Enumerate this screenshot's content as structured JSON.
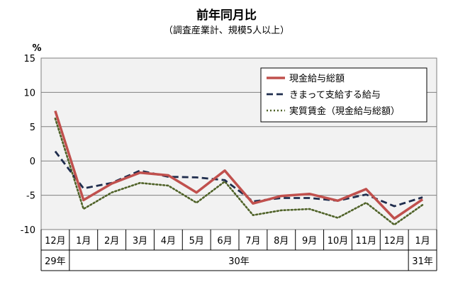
{
  "chart_data": {
    "type": "line",
    "title": "前年同月比",
    "subtitle": "（調査産業計、規模5人以上）",
    "ylabel": "%",
    "ylim": [
      -10,
      15
    ],
    "yticks": [
      15,
      10,
      5,
      0,
      -5,
      -10
    ],
    "grid": true,
    "legend_position": "top-right",
    "categories": [
      "12月",
      "1月",
      "2月",
      "3月",
      "4月",
      "5月",
      "6月",
      "7月",
      "8月",
      "9月",
      "10月",
      "11月",
      "12月",
      "1月"
    ],
    "year_labels": [
      {
        "label": "29年",
        "from": 0,
        "to": 0
      },
      {
        "label": "30年",
        "from": 1,
        "to": 12
      },
      {
        "label": "31年",
        "from": 13,
        "to": 13
      }
    ],
    "series": [
      {
        "name": "現金給与総額",
        "color": "#c0504d",
        "style": "solid",
        "values": [
          7.3,
          -5.7,
          -3.3,
          -1.7,
          -2.1,
          -4.6,
          -1.4,
          -6.2,
          -5.1,
          -4.8,
          -5.8,
          -4.1,
          -8.4,
          -5.6
        ]
      },
      {
        "name": "きまって支給する給与",
        "color": "#1f2d4d",
        "style": "dashed",
        "values": [
          1.4,
          -4.0,
          -3.2,
          -1.4,
          -2.3,
          -2.4,
          -2.8,
          -5.9,
          -5.4,
          -5.4,
          -5.8,
          -4.9,
          -6.6,
          -5.3
        ]
      },
      {
        "name": "実質賃金（現金給与総額）",
        "color": "#4f6228",
        "style": "dotted",
        "values": [
          6.2,
          -7.0,
          -4.6,
          -3.2,
          -3.6,
          -6.1,
          -3.0,
          -7.9,
          -7.2,
          -7.0,
          -8.3,
          -6.1,
          -9.3,
          -6.4
        ]
      }
    ]
  }
}
